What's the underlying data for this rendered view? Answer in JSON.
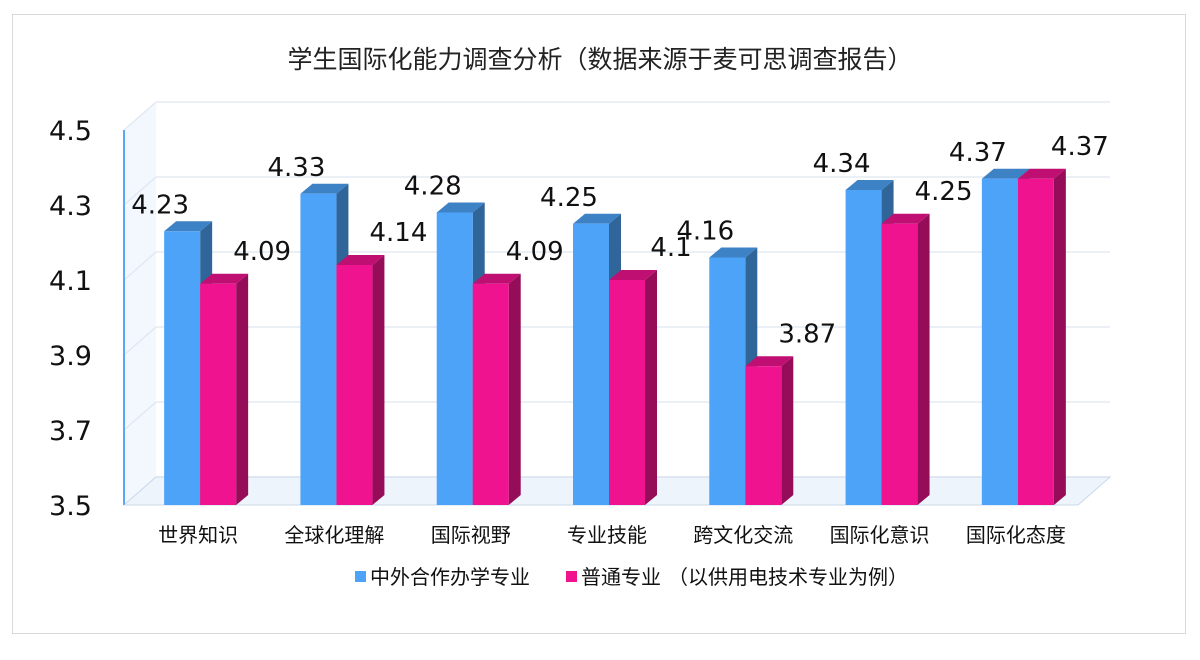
{
  "chart_data": {
    "type": "bar",
    "title": "学生国际化能力调查分析（数据来源于麦可思调查报告）",
    "categories": [
      "世界知识",
      "全球化理解",
      "国际视野",
      "专业技能",
      "跨文化交流",
      "国际化意识",
      "国际化态度"
    ],
    "series": [
      {
        "name": "中外合作办学专业",
        "color": "#4da3f7",
        "values": [
          4.23,
          4.33,
          4.28,
          4.25,
          4.16,
          4.34,
          4.37
        ]
      },
      {
        "name": "普通专业",
        "color": "#f0138f",
        "values": [
          4.09,
          4.14,
          4.09,
          4.1,
          3.87,
          4.25,
          4.37
        ]
      }
    ],
    "legend_note": "（以供用电技术专业为例）",
    "ylim": [
      3.5,
      4.5
    ],
    "yticks": [
      "3.5",
      "3.7",
      "3.9",
      "4.1",
      "4.3",
      "4.5"
    ],
    "value_labels": [
      [
        "4.23",
        "4.33",
        "4.28",
        "4.25",
        "4.16",
        "4.34",
        "4.37"
      ],
      [
        "4.09",
        "4.14",
        "4.09",
        "4.1",
        "3.87",
        "4.25",
        "4.37"
      ]
    ],
    "grid": true,
    "legend_position": "bottom",
    "xlabel": "",
    "ylabel": ""
  }
}
